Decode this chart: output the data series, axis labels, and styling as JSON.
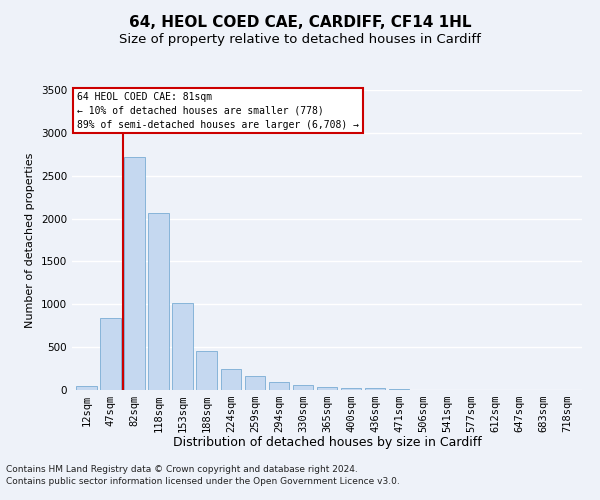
{
  "title": "64, HEOL COED CAE, CARDIFF, CF14 1HL",
  "subtitle": "Size of property relative to detached houses in Cardiff",
  "xlabel": "Distribution of detached houses by size in Cardiff",
  "ylabel": "Number of detached properties",
  "categories": [
    "12sqm",
    "47sqm",
    "82sqm",
    "118sqm",
    "153sqm",
    "188sqm",
    "224sqm",
    "259sqm",
    "294sqm",
    "330sqm",
    "365sqm",
    "400sqm",
    "436sqm",
    "471sqm",
    "506sqm",
    "541sqm",
    "577sqm",
    "612sqm",
    "647sqm",
    "683sqm",
    "718sqm"
  ],
  "bar_heights": [
    50,
    840,
    2720,
    2060,
    1010,
    460,
    240,
    160,
    95,
    60,
    35,
    25,
    20,
    15,
    5,
    3,
    2,
    1,
    1,
    0,
    0
  ],
  "bar_color": "#c5d8f0",
  "bar_edge_color": "#7aadd4",
  "background_color": "#eef2f9",
  "grid_color": "#ffffff",
  "annotation_box_text": "64 HEOL COED CAE: 81sqm\n← 10% of detached houses are smaller (778)\n89% of semi-detached houses are larger (6,708) →",
  "vline_x_index": 2,
  "vline_color": "#cc0000",
  "ylim": [
    0,
    3500
  ],
  "yticks": [
    0,
    500,
    1000,
    1500,
    2000,
    2500,
    3000,
    3500
  ],
  "footnote1": "Contains HM Land Registry data © Crown copyright and database right 2024.",
  "footnote2": "Contains public sector information licensed under the Open Government Licence v3.0.",
  "title_fontsize": 11,
  "subtitle_fontsize": 9.5,
  "xlabel_fontsize": 9,
  "ylabel_fontsize": 8,
  "tick_fontsize": 7.5,
  "footnote_fontsize": 6.5
}
